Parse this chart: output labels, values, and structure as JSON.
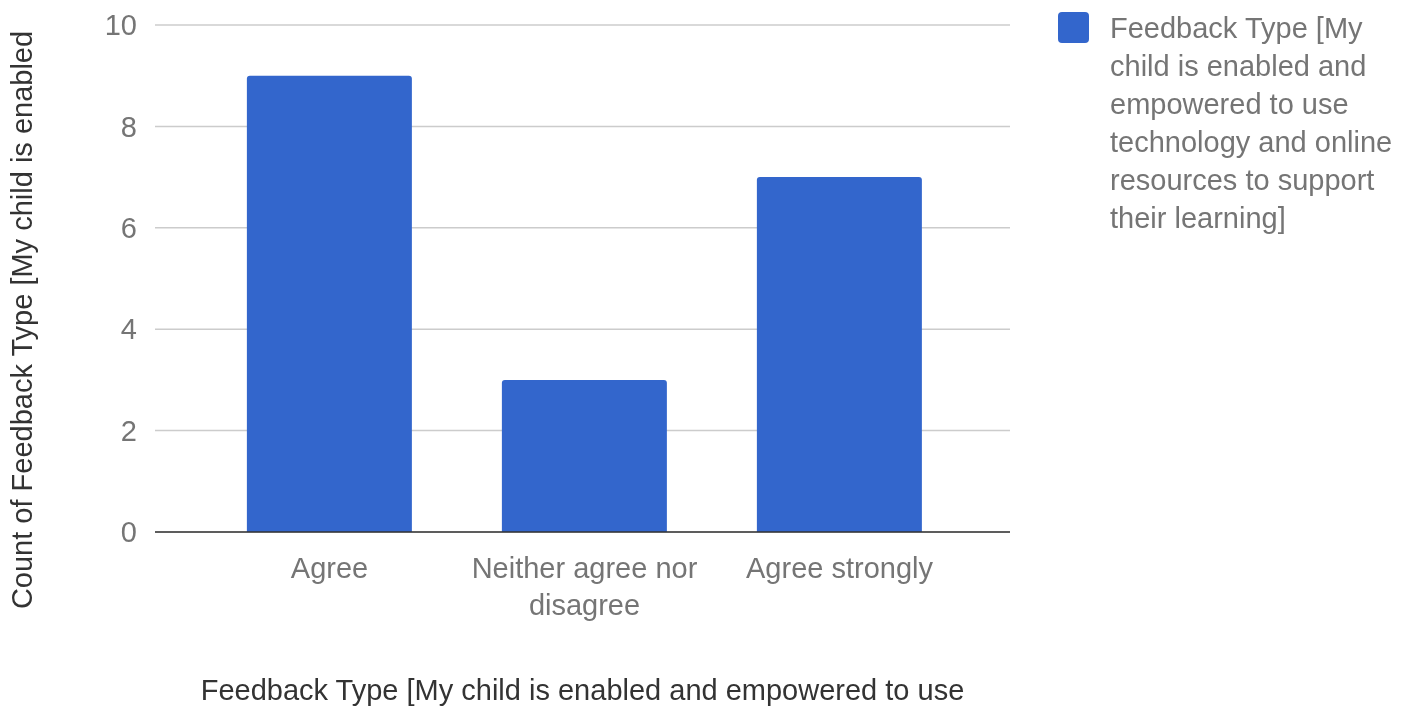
{
  "chart_data": {
    "type": "bar",
    "xlabel": "Feedback Type [My child is enabled and empowered to use",
    "ylabel": "Count of Feedback Type [My child is enabled",
    "categories": [
      "Agree",
      "Neither agree nor disagree",
      "Agree strongly"
    ],
    "series": [
      {
        "name": "Feedback Type [My child is enabled and empowered to use technology and online resources to support their learning]",
        "color": "#3366cc",
        "values": [
          9,
          3,
          7
        ]
      }
    ],
    "ylim": [
      0,
      10
    ],
    "yticks": [
      0,
      2,
      4,
      6,
      8,
      10
    ],
    "grid": "y",
    "legend": "right"
  }
}
